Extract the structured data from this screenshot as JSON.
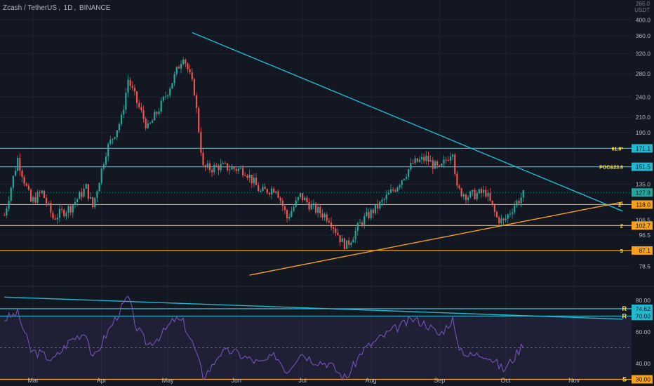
{
  "header": {
    "symbol": "Zcash / TetherUS",
    "interval": "1D",
    "exchange": "BINANCE",
    "currency_top": "286.0",
    "currency": "USDT"
  },
  "colors": {
    "background": "#131722",
    "up": "#26a69a",
    "down": "#ef5350",
    "cyan": "#22b8cf",
    "orange": "#f7a21b",
    "rsi": "#7e57c2",
    "grid": "#1e2231",
    "axis_text": "#b2b5be"
  },
  "chart_data": [
    {
      "type": "candlestick",
      "scale": "log",
      "ylim": [
        70,
        412
      ],
      "x_ticks": [
        "Mar",
        "Apr",
        "May",
        "Jun",
        "Jul",
        "Aug",
        "Sep",
        "Oct",
        "Nov"
      ],
      "y_ticks": [
        "400.0",
        "360.0",
        "320.0",
        "280.0",
        "240.0",
        "210.0",
        "190.0",
        "135.0",
        "106.5",
        "96.5",
        "78.5"
      ],
      "last_price": "127.8",
      "series": [
        {
          "x": "2021-02-16",
          "y": 110
        },
        {
          "x": "2021-02-22",
          "y": 160
        },
        {
          "x": "2021-02-28",
          "y": 120
        },
        {
          "x": "2021-03-05",
          "y": 128
        },
        {
          "x": "2021-03-10",
          "y": 108
        },
        {
          "x": "2021-03-18",
          "y": 116
        },
        {
          "x": "2021-03-25",
          "y": 132
        },
        {
          "x": "2021-03-28",
          "y": 116
        },
        {
          "x": "2021-04-03",
          "y": 168
        },
        {
          "x": "2021-04-10",
          "y": 208
        },
        {
          "x": "2021-04-13",
          "y": 270
        },
        {
          "x": "2021-04-17",
          "y": 232
        },
        {
          "x": "2021-04-22",
          "y": 195
        },
        {
          "x": "2021-04-28",
          "y": 228
        },
        {
          "x": "2021-05-04",
          "y": 275
        },
        {
          "x": "2021-05-08",
          "y": 318
        },
        {
          "x": "2021-05-13",
          "y": 250
        },
        {
          "x": "2021-05-17",
          "y": 150
        },
        {
          "x": "2021-05-21",
          "y": 150
        },
        {
          "x": "2021-05-24",
          "y": 152
        },
        {
          "x": "2021-05-30",
          "y": 150
        },
        {
          "x": "2021-06-05",
          "y": 148
        },
        {
          "x": "2021-06-12",
          "y": 128
        },
        {
          "x": "2021-06-19",
          "y": 132
        },
        {
          "x": "2021-06-24",
          "y": 108
        },
        {
          "x": "2021-06-30",
          "y": 125
        },
        {
          "x": "2021-07-06",
          "y": 115
        },
        {
          "x": "2021-07-13",
          "y": 108
        },
        {
          "x": "2021-07-19",
          "y": 92
        },
        {
          "x": "2021-07-21",
          "y": 90
        },
        {
          "x": "2021-07-28",
          "y": 106
        },
        {
          "x": "2021-08-05",
          "y": 118
        },
        {
          "x": "2021-08-12",
          "y": 132
        },
        {
          "x": "2021-08-20",
          "y": 155
        },
        {
          "x": "2021-08-26",
          "y": 160
        },
        {
          "x": "2021-09-01",
          "y": 148
        },
        {
          "x": "2021-09-07",
          "y": 170
        },
        {
          "x": "2021-09-09",
          "y": 130
        },
        {
          "x": "2021-09-14",
          "y": 125
        },
        {
          "x": "2021-09-22",
          "y": 128
        },
        {
          "x": "2021-09-27",
          "y": 108
        },
        {
          "x": "2021-09-30",
          "y": 105
        },
        {
          "x": "2021-10-05",
          "y": 118
        },
        {
          "x": "2021-10-10",
          "y": 128
        }
      ],
      "horizontal_levels": [
        {
          "value": 171.1,
          "label": "61.8*",
          "badge": "171.1",
          "color": "cyan"
        },
        {
          "value": 151.5,
          "label": "POC&23.6",
          "badge": "151.5",
          "color": "cyan"
        },
        {
          "value": 118.0,
          "label": "Z*",
          "badge": "118.0",
          "color": "orange"
        },
        {
          "value": 102.7,
          "label": "Z",
          "badge": "102.7",
          "color": "orange"
        },
        {
          "value": 87.1,
          "label": "S",
          "badge": "87.1",
          "color": "orange"
        }
      ],
      "trendlines": [
        {
          "name": "descending-resistance",
          "from": {
            "x": "2021-05-12",
            "y": 368
          },
          "to": {
            "x": "2021-11-23",
            "y": 113
          },
          "color": "cyan"
        },
        {
          "name": "ascending-support",
          "from": {
            "x": "2021-06-07",
            "y": 74
          },
          "to": {
            "x": "2021-11-23",
            "y": 120
          },
          "color": "orange"
        }
      ]
    },
    {
      "type": "line",
      "name": "RSI",
      "ylim": [
        28,
        87
      ],
      "y_ticks": [
        "80.00",
        "60.00",
        "40.00"
      ],
      "band": [
        30,
        70
      ],
      "midline": 50,
      "values": [
        {
          "x": "2021-02-16",
          "y": 68
        },
        {
          "x": "2021-02-22",
          "y": 72
        },
        {
          "x": "2021-02-28",
          "y": 48
        },
        {
          "x": "2021-03-05",
          "y": 46
        },
        {
          "x": "2021-03-10",
          "y": 42
        },
        {
          "x": "2021-03-18",
          "y": 55
        },
        {
          "x": "2021-03-25",
          "y": 60
        },
        {
          "x": "2021-03-28",
          "y": 42
        },
        {
          "x": "2021-04-03",
          "y": 58
        },
        {
          "x": "2021-04-10",
          "y": 75
        },
        {
          "x": "2021-04-13",
          "y": 82
        },
        {
          "x": "2021-04-17",
          "y": 62
        },
        {
          "x": "2021-04-22",
          "y": 52
        },
        {
          "x": "2021-04-28",
          "y": 58
        },
        {
          "x": "2021-05-04",
          "y": 68
        },
        {
          "x": "2021-05-08",
          "y": 66
        },
        {
          "x": "2021-05-13",
          "y": 50
        },
        {
          "x": "2021-05-17",
          "y": 32
        },
        {
          "x": "2021-05-21",
          "y": 38
        },
        {
          "x": "2021-05-24",
          "y": 46
        },
        {
          "x": "2021-05-30",
          "y": 48
        },
        {
          "x": "2021-06-05",
          "y": 44
        },
        {
          "x": "2021-06-12",
          "y": 40
        },
        {
          "x": "2021-06-19",
          "y": 45
        },
        {
          "x": "2021-06-24",
          "y": 35
        },
        {
          "x": "2021-06-30",
          "y": 47
        },
        {
          "x": "2021-07-06",
          "y": 42
        },
        {
          "x": "2021-07-13",
          "y": 40
        },
        {
          "x": "2021-07-19",
          "y": 32
        },
        {
          "x": "2021-07-21",
          "y": 31
        },
        {
          "x": "2021-07-28",
          "y": 48
        },
        {
          "x": "2021-08-05",
          "y": 56
        },
        {
          "x": "2021-08-12",
          "y": 62
        },
        {
          "x": "2021-08-20",
          "y": 68
        },
        {
          "x": "2021-08-26",
          "y": 65
        },
        {
          "x": "2021-09-01",
          "y": 58
        },
        {
          "x": "2021-09-07",
          "y": 68
        },
        {
          "x": "2021-09-09",
          "y": 52
        },
        {
          "x": "2021-09-14",
          "y": 45
        },
        {
          "x": "2021-09-22",
          "y": 46
        },
        {
          "x": "2021-09-27",
          "y": 40
        },
        {
          "x": "2021-09-30",
          "y": 36
        },
        {
          "x": "2021-10-05",
          "y": 44
        },
        {
          "x": "2021-10-10",
          "y": 55
        }
      ],
      "horizontal_levels": [
        {
          "value": 74.62,
          "label": "R",
          "badge": "74.62",
          "color": "cyan"
        },
        {
          "value": 70.0,
          "label": "R",
          "badge": "70.00",
          "color": "cyan"
        },
        {
          "value": 30.0,
          "label": "S",
          "badge": "30.00",
          "color": "orange"
        }
      ],
      "trendlines": [
        {
          "name": "rsi-descending-resistance",
          "from": {
            "x": "2021-02-16",
            "y": 82
          },
          "to": {
            "x": "2021-11-23",
            "y": 68
          },
          "color": "cyan"
        }
      ]
    }
  ]
}
